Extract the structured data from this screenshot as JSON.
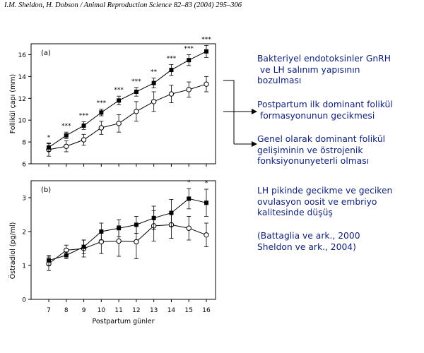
{
  "citation": "I.M. Sheldon, H. Dobson / Animal Reproduction Science 82–83 (2004) 295–306",
  "notes": [
    "Bakteriyel endotoksinler GnRH\n ve LH salınım yapısının\nbozulması",
    "Postpartum ilk dominant folikül\n formasyonunun gecikmesi",
    "Genel olarak dominant folikül\ngelişiminin ve östrojenik\nfonksiyonunyeterli olması",
    "LH pikinde gecikme ve geciken\novulasyon oosit ve embriyo\nkalitesinde düşüş",
    "(Battaglia ve ark., 2000\nSheldon ve ark., 2004)"
  ],
  "colors": {
    "note_text": "#0f1f78",
    "line": "#000000",
    "open_marker_fill": "#ffffff"
  },
  "chart_data": [
    {
      "type": "line",
      "panel_label": "(a)",
      "ylabel": "Follikül çapı (mm)",
      "x": [
        7,
        8,
        9,
        10,
        11,
        12,
        13,
        14,
        15,
        16
      ],
      "ylim": [
        6,
        17
      ],
      "yticks": [
        6,
        8,
        10,
        12,
        14,
        16
      ],
      "series": [
        {
          "marker": "filled-square",
          "values": [
            7.5,
            8.6,
            9.5,
            10.7,
            11.8,
            12.6,
            13.4,
            14.6,
            15.5,
            16.3
          ],
          "errors": [
            0.35,
            0.3,
            0.35,
            0.3,
            0.4,
            0.4,
            0.45,
            0.5,
            0.5,
            0.55
          ]
        },
        {
          "marker": "open-circle",
          "values": [
            7.3,
            7.6,
            8.2,
            9.3,
            9.7,
            10.8,
            11.7,
            12.4,
            12.8,
            13.3
          ],
          "errors": [
            0.6,
            0.5,
            0.5,
            0.6,
            0.8,
            0.9,
            0.9,
            0.8,
            0.7,
            0.7
          ]
        }
      ],
      "significance": [
        {
          "x": 7,
          "label": "*"
        },
        {
          "x": 8,
          "label": "***"
        },
        {
          "x": 9,
          "label": "***"
        },
        {
          "x": 10,
          "label": "***"
        },
        {
          "x": 11,
          "label": "***"
        },
        {
          "x": 12,
          "label": "***"
        },
        {
          "x": 13,
          "label": "**"
        },
        {
          "x": 14,
          "label": "***"
        },
        {
          "x": 15,
          "label": "***"
        },
        {
          "x": 16,
          "label": "***"
        }
      ]
    },
    {
      "type": "line",
      "panel_label": "(b)",
      "ylabel": "Östradiol (pg/ml)",
      "xlabel": "Postpartum günler",
      "x": [
        7,
        8,
        9,
        10,
        11,
        12,
        13,
        14,
        15,
        16
      ],
      "xticks": [
        7,
        8,
        9,
        10,
        11,
        12,
        13,
        14,
        15,
        16
      ],
      "ylim": [
        0,
        3.5
      ],
      "yticks": [
        0,
        1,
        2,
        3
      ],
      "series": [
        {
          "marker": "filled-square",
          "values": [
            1.15,
            1.3,
            1.55,
            2.0,
            2.1,
            2.2,
            2.4,
            2.55,
            2.97,
            2.85
          ],
          "errors": [
            0.15,
            0.1,
            0.2,
            0.25,
            0.25,
            0.25,
            0.35,
            0.4,
            0.3,
            0.4
          ]
        },
        {
          "marker": "open-circle",
          "values": [
            1.05,
            1.45,
            1.5,
            1.7,
            1.72,
            1.7,
            2.17,
            2.2,
            2.1,
            1.9
          ],
          "errors": [
            0.2,
            0.15,
            0.25,
            0.35,
            0.45,
            0.5,
            0.45,
            0.4,
            0.35,
            0.35
          ]
        }
      ],
      "significance": [
        {
          "x": 15,
          "label": "*"
        },
        {
          "x": 16,
          "label": "*"
        }
      ]
    }
  ]
}
